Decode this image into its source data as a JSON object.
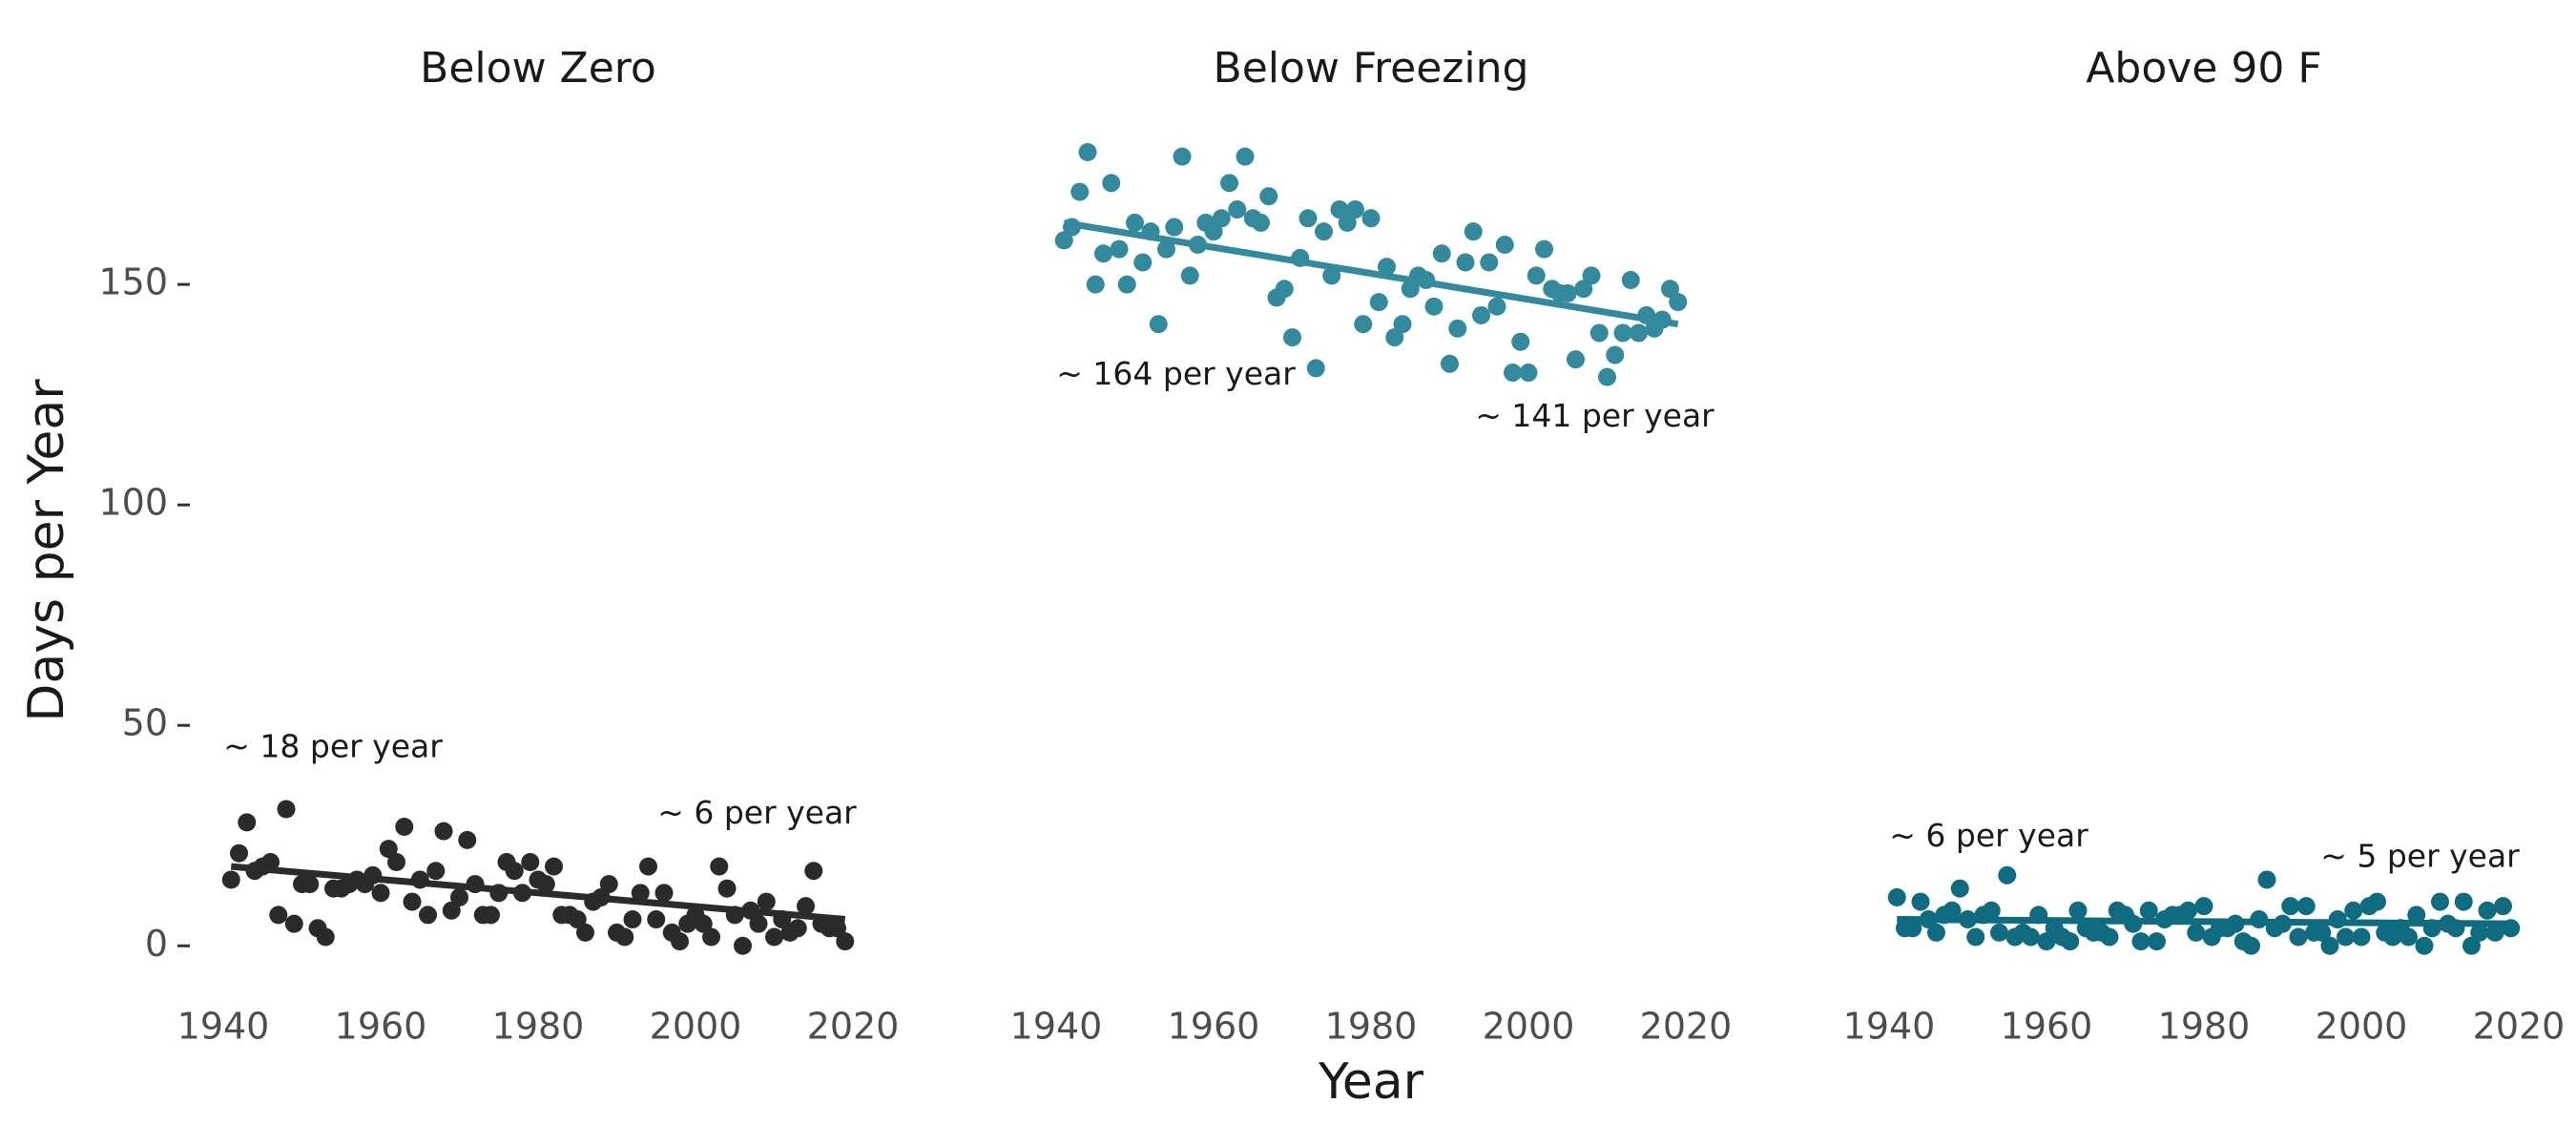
{
  "y_label": "Days per Year",
  "x_label": "Year",
  "ylim": [
    -6,
    184
  ],
  "yticks": [
    0,
    50,
    100,
    150
  ],
  "chart_data": [
    {
      "type": "scatter",
      "title": "Below Zero",
      "color": "#2b2b2b",
      "xlim": [
        1936,
        2024
      ],
      "xticks": [
        1940,
        1960,
        1980,
        2000,
        2020
      ],
      "x": [
        1941,
        1942,
        1943,
        1944,
        1945,
        1946,
        1947,
        1948,
        1949,
        1950,
        1951,
        1952,
        1953,
        1954,
        1955,
        1956,
        1957,
        1958,
        1959,
        1960,
        1961,
        1962,
        1963,
        1964,
        1965,
        1966,
        1967,
        1968,
        1969,
        1970,
        1971,
        1972,
        1973,
        1974,
        1975,
        1976,
        1977,
        1978,
        1979,
        1980,
        1981,
        1982,
        1983,
        1984,
        1985,
        1986,
        1987,
        1988,
        1989,
        1990,
        1991,
        1992,
        1993,
        1994,
        1995,
        1996,
        1997,
        1998,
        1999,
        2000,
        2001,
        2002,
        2003,
        2004,
        2005,
        2006,
        2007,
        2008,
        2009,
        2010,
        2011,
        2012,
        2013,
        2014,
        2015,
        2016,
        2017,
        2018,
        2019
      ],
      "values": [
        15,
        21,
        28,
        17,
        18,
        19,
        7,
        31,
        5,
        14,
        14,
        4,
        2,
        13,
        13,
        14,
        15,
        14,
        16,
        12,
        22,
        19,
        27,
        10,
        15,
        7,
        17,
        26,
        8,
        11,
        24,
        14,
        7,
        7,
        12,
        19,
        17,
        12,
        19,
        15,
        14,
        18,
        7,
        7,
        6,
        3,
        10,
        11,
        14,
        3,
        2,
        6,
        12,
        18,
        6,
        12,
        3,
        1,
        5,
        7,
        5,
        2,
        18,
        13,
        7,
        0,
        8,
        5,
        10,
        2,
        6,
        3,
        4,
        9,
        17,
        5,
        4,
        4,
        1
      ],
      "trend": {
        "x": [
          1941,
          2019
        ],
        "values": [
          18,
          6
        ]
      },
      "annotations": [
        "~ 18 per year",
        "~ 6 per year"
      ]
    },
    {
      "type": "scatter",
      "title": "Below Freezing",
      "color": "#338a9d",
      "xlim": [
        1936,
        2024
      ],
      "xticks": [
        1940,
        1960,
        1980,
        2000,
        2020
      ],
      "x": [
        1941,
        1942,
        1943,
        1944,
        1945,
        1946,
        1947,
        1948,
        1949,
        1950,
        1951,
        1952,
        1953,
        1954,
        1955,
        1956,
        1957,
        1958,
        1959,
        1960,
        1961,
        1962,
        1963,
        1964,
        1965,
        1966,
        1967,
        1968,
        1969,
        1970,
        1971,
        1972,
        1973,
        1974,
        1975,
        1976,
        1977,
        1978,
        1979,
        1980,
        1981,
        1982,
        1983,
        1984,
        1985,
        1986,
        1987,
        1988,
        1989,
        1990,
        1991,
        1992,
        1993,
        1994,
        1995,
        1996,
        1997,
        1998,
        1999,
        2000,
        2001,
        2002,
        2003,
        2004,
        2005,
        2006,
        2007,
        2008,
        2009,
        2010,
        2011,
        2012,
        2013,
        2014,
        2015,
        2016,
        2017,
        2018,
        2019
      ],
      "values": [
        160,
        163,
        171,
        180,
        150,
        157,
        173,
        158,
        150,
        164,
        155,
        162,
        141,
        158,
        163,
        179,
        152,
        159,
        164,
        162,
        165,
        173,
        167,
        179,
        165,
        164,
        170,
        147,
        149,
        138,
        156,
        165,
        131,
        162,
        152,
        167,
        164,
        167,
        141,
        165,
        146,
        154,
        138,
        141,
        149,
        152,
        151,
        145,
        157,
        132,
        140,
        155,
        162,
        143,
        155,
        145,
        159,
        130,
        137,
        130,
        152,
        158,
        149,
        148,
        148,
        133,
        149,
        152,
        139,
        129,
        134,
        139,
        151,
        139,
        143,
        140,
        142,
        149,
        146
      ],
      "trend": {
        "x": [
          1941,
          2019
        ],
        "values": [
          164,
          141
        ]
      },
      "annotations": [
        "~ 164 per year",
        "~ 141 per year"
      ]
    },
    {
      "type": "scatter",
      "title": "Above 90 F",
      "color": "#0f6b80",
      "xlim": [
        1936,
        2024
      ],
      "xticks": [
        1940,
        1960,
        1980,
        2000,
        2020
      ],
      "x": [
        1941,
        1942,
        1943,
        1944,
        1945,
        1946,
        1947,
        1948,
        1949,
        1950,
        1951,
        1952,
        1953,
        1954,
        1955,
        1956,
        1957,
        1958,
        1959,
        1960,
        1961,
        1962,
        1963,
        1964,
        1965,
        1966,
        1967,
        1968,
        1969,
        1970,
        1971,
        1972,
        1973,
        1974,
        1975,
        1976,
        1977,
        1978,
        1979,
        1980,
        1981,
        1982,
        1983,
        1984,
        1985,
        1986,
        1987,
        1988,
        1989,
        1990,
        1991,
        1992,
        1993,
        1994,
        1995,
        1996,
        1997,
        1998,
        1999,
        2000,
        2001,
        2002,
        2003,
        2004,
        2005,
        2006,
        2007,
        2008,
        2009,
        2010,
        2011,
        2012,
        2013,
        2014,
        2015,
        2016,
        2017,
        2018,
        2019
      ],
      "values": [
        11,
        4,
        4,
        10,
        6,
        3,
        7,
        8,
        13,
        6,
        2,
        7,
        8,
        3,
        16,
        2,
        3,
        2,
        7,
        1,
        4,
        2,
        1,
        8,
        4,
        3,
        3,
        2,
        8,
        7,
        5,
        1,
        8,
        1,
        6,
        7,
        7,
        8,
        3,
        9,
        2,
        4,
        4,
        5,
        1,
        0,
        6,
        15,
        4,
        5,
        9,
        2,
        9,
        3,
        3,
        0,
        6,
        2,
        8,
        2,
        9,
        10,
        3,
        2,
        4,
        2,
        7,
        0,
        4,
        10,
        5,
        4,
        10,
        0,
        3,
        8,
        3,
        9,
        4
      ],
      "trend": {
        "x": [
          1941,
          2019
        ],
        "values": [
          6,
          5
        ]
      },
      "annotations": [
        "~ 6 per year",
        "~ 5 per year"
      ]
    }
  ]
}
